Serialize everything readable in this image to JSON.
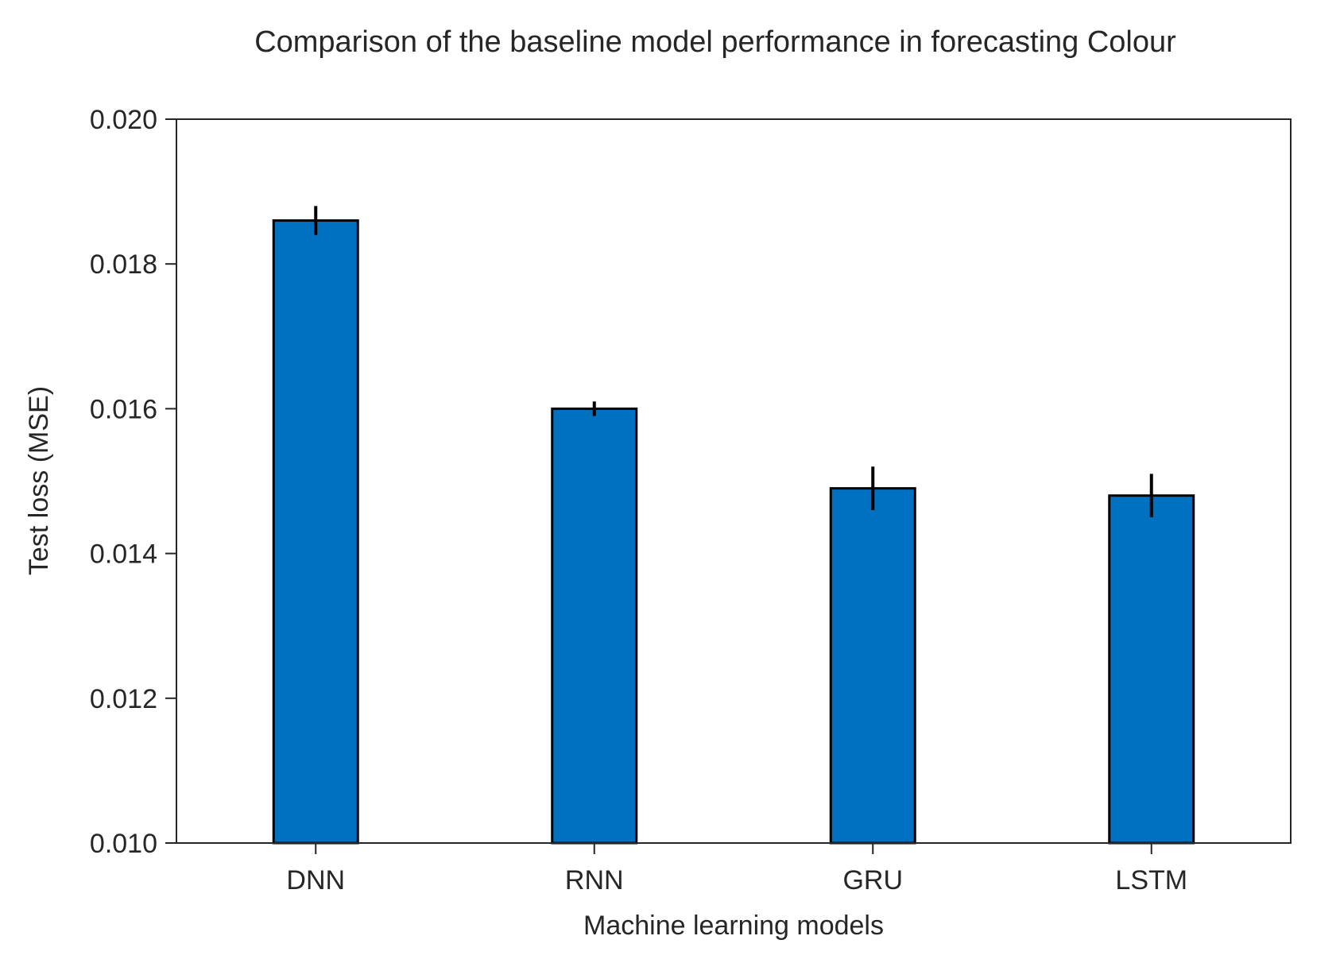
{
  "chart_data": {
    "type": "bar",
    "title": "Comparison of the baseline model performance in forecasting Colour",
    "xlabel": "Machine learning models",
    "ylabel": "Test loss (MSE)",
    "categories": [
      "DNN",
      "RNN",
      "GRU",
      "LSTM"
    ],
    "values": [
      0.0186,
      0.016,
      0.0149,
      0.0148
    ],
    "errors": [
      0.0002,
      0.0001,
      0.0003,
      0.0003
    ],
    "ylim": [
      0.01,
      0.02
    ],
    "yticks": [
      0.01,
      0.012,
      0.014,
      0.016,
      0.018,
      0.02
    ],
    "ytick_labels": [
      "0.010",
      "0.012",
      "0.014",
      "0.016",
      "0.018",
      "0.020"
    ],
    "grid": false,
    "legend": "none",
    "bar_color": "#0070c0",
    "edge_color": "#000000"
  }
}
